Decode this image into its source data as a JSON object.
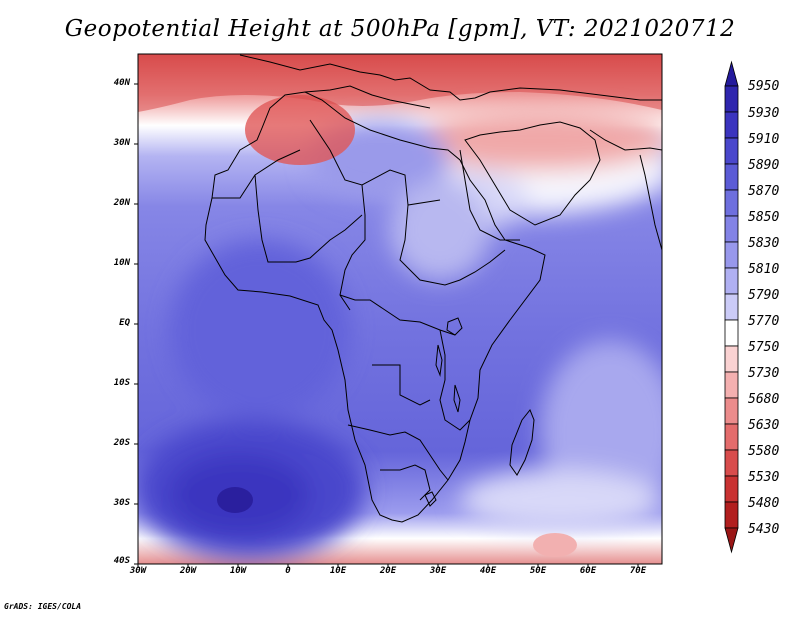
{
  "title": "Geopotential Height at 500hPa [gpm], VT: 2021020712",
  "credit": "GrADS: IGES/COLA",
  "lat_ticks": [
    "40N",
    "30N",
    "20N",
    "10N",
    "EQ",
    "10S",
    "20S",
    "30S",
    "40S"
  ],
  "lon_ticks": [
    "30W",
    "20W",
    "10W",
    "0",
    "10E",
    "20E",
    "30E",
    "40E",
    "50E",
    "60E",
    "70E"
  ],
  "colorbar": {
    "labels": [
      "5950",
      "5930",
      "5910",
      "5890",
      "5870",
      "5850",
      "5830",
      "5810",
      "5790",
      "5770",
      "5750",
      "5730",
      "5680",
      "5630",
      "5580",
      "5530",
      "5480",
      "5430"
    ],
    "colors": [
      "#241a9c",
      "#2f26ae",
      "#3b34bf",
      "#4a47cc",
      "#5b5bd6",
      "#6e6fde",
      "#8383e6",
      "#9898ec",
      "#b0b0f2",
      "#cbcbf7",
      "#ffffff",
      "#fad2d2",
      "#f4b0b0",
      "#ec8c8c",
      "#e46c6c",
      "#d84c4c",
      "#c93232",
      "#b21f1f",
      "#9a1616"
    ]
  }
}
